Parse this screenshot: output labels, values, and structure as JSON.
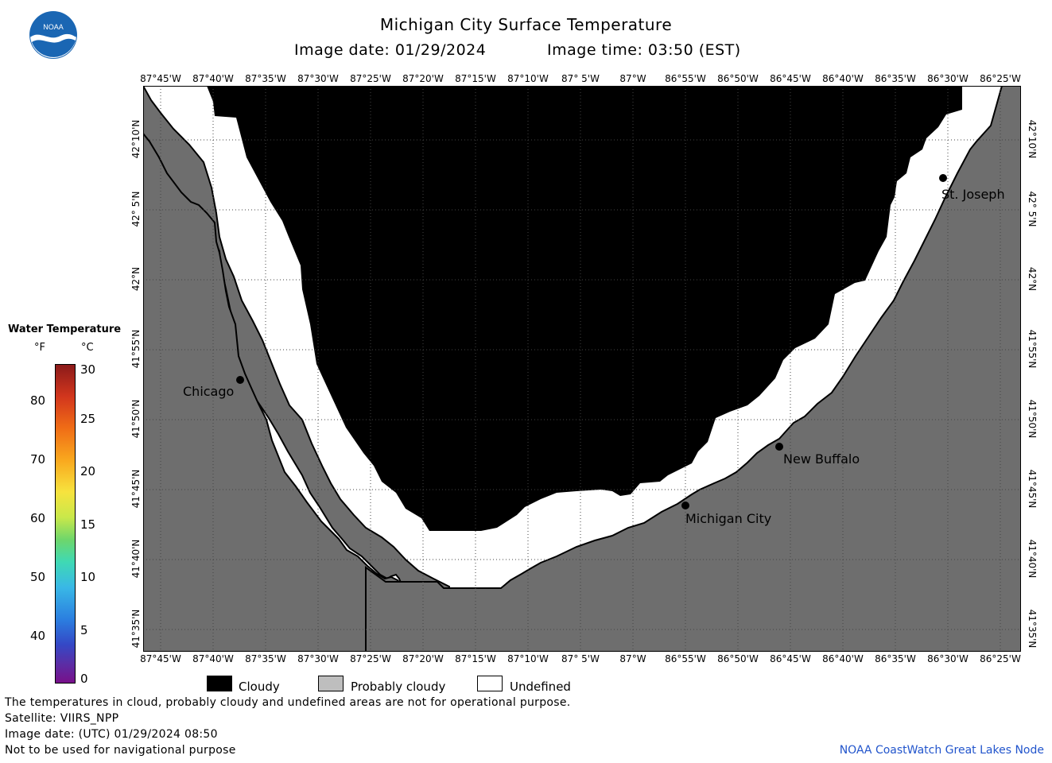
{
  "header": {
    "title": "Michigan City Surface Temperature",
    "image_date": "Image date: 01/29/2024",
    "image_time": "Image time: 03:50 (EST)"
  },
  "logo": {
    "text": "NOAA"
  },
  "map": {
    "lon_labels": [
      "87°45'W",
      "87°40'W",
      "87°35'W",
      "87°30'W",
      "87°25'W",
      "87°20'W",
      "87°15'W",
      "87°10'W",
      "87° 5'W",
      "87°W",
      "86°55'W",
      "86°50'W",
      "86°45'W",
      "86°40'W",
      "86°35'W",
      "86°30'W",
      "86°25'W"
    ],
    "lat_labels": [
      "42°10'N",
      "42° 5'N",
      "42°N",
      "41°55'N",
      "41°50'N",
      "41°45'N",
      "41°40'N",
      "41°35'N"
    ],
    "cities": [
      {
        "name": "Chicago"
      },
      {
        "name": "St. Joseph"
      },
      {
        "name": "New Buffalo"
      },
      {
        "name": "Michigan City"
      }
    ],
    "colors": {
      "cloudy": "#000000",
      "probably_cloudy": "#6e6e6e",
      "undefined": "#ffffff"
    }
  },
  "scale": {
    "title": "Water Temperature",
    "unit_f": "°F",
    "unit_c": "°C",
    "f_ticks": [
      "80",
      "70",
      "60",
      "50",
      "40"
    ],
    "c_ticks": [
      "30",
      "25",
      "20",
      "15",
      "10",
      "5",
      "0"
    ]
  },
  "legend": {
    "cloudy": "Cloudy",
    "probably_cloudy": "Probably cloudy",
    "undefined": "Undefined"
  },
  "footer": {
    "line1": "The temperatures in cloud, probably cloudy and undefined areas are not for operational purpose.",
    "line2": "Satellite: VIIRS_NPP",
    "line3": "Image date: (UTC) 01/29/2024  08:50",
    "line4": "Not to be used for navigational purpose",
    "credit": "NOAA CoastWatch Great Lakes Node"
  }
}
